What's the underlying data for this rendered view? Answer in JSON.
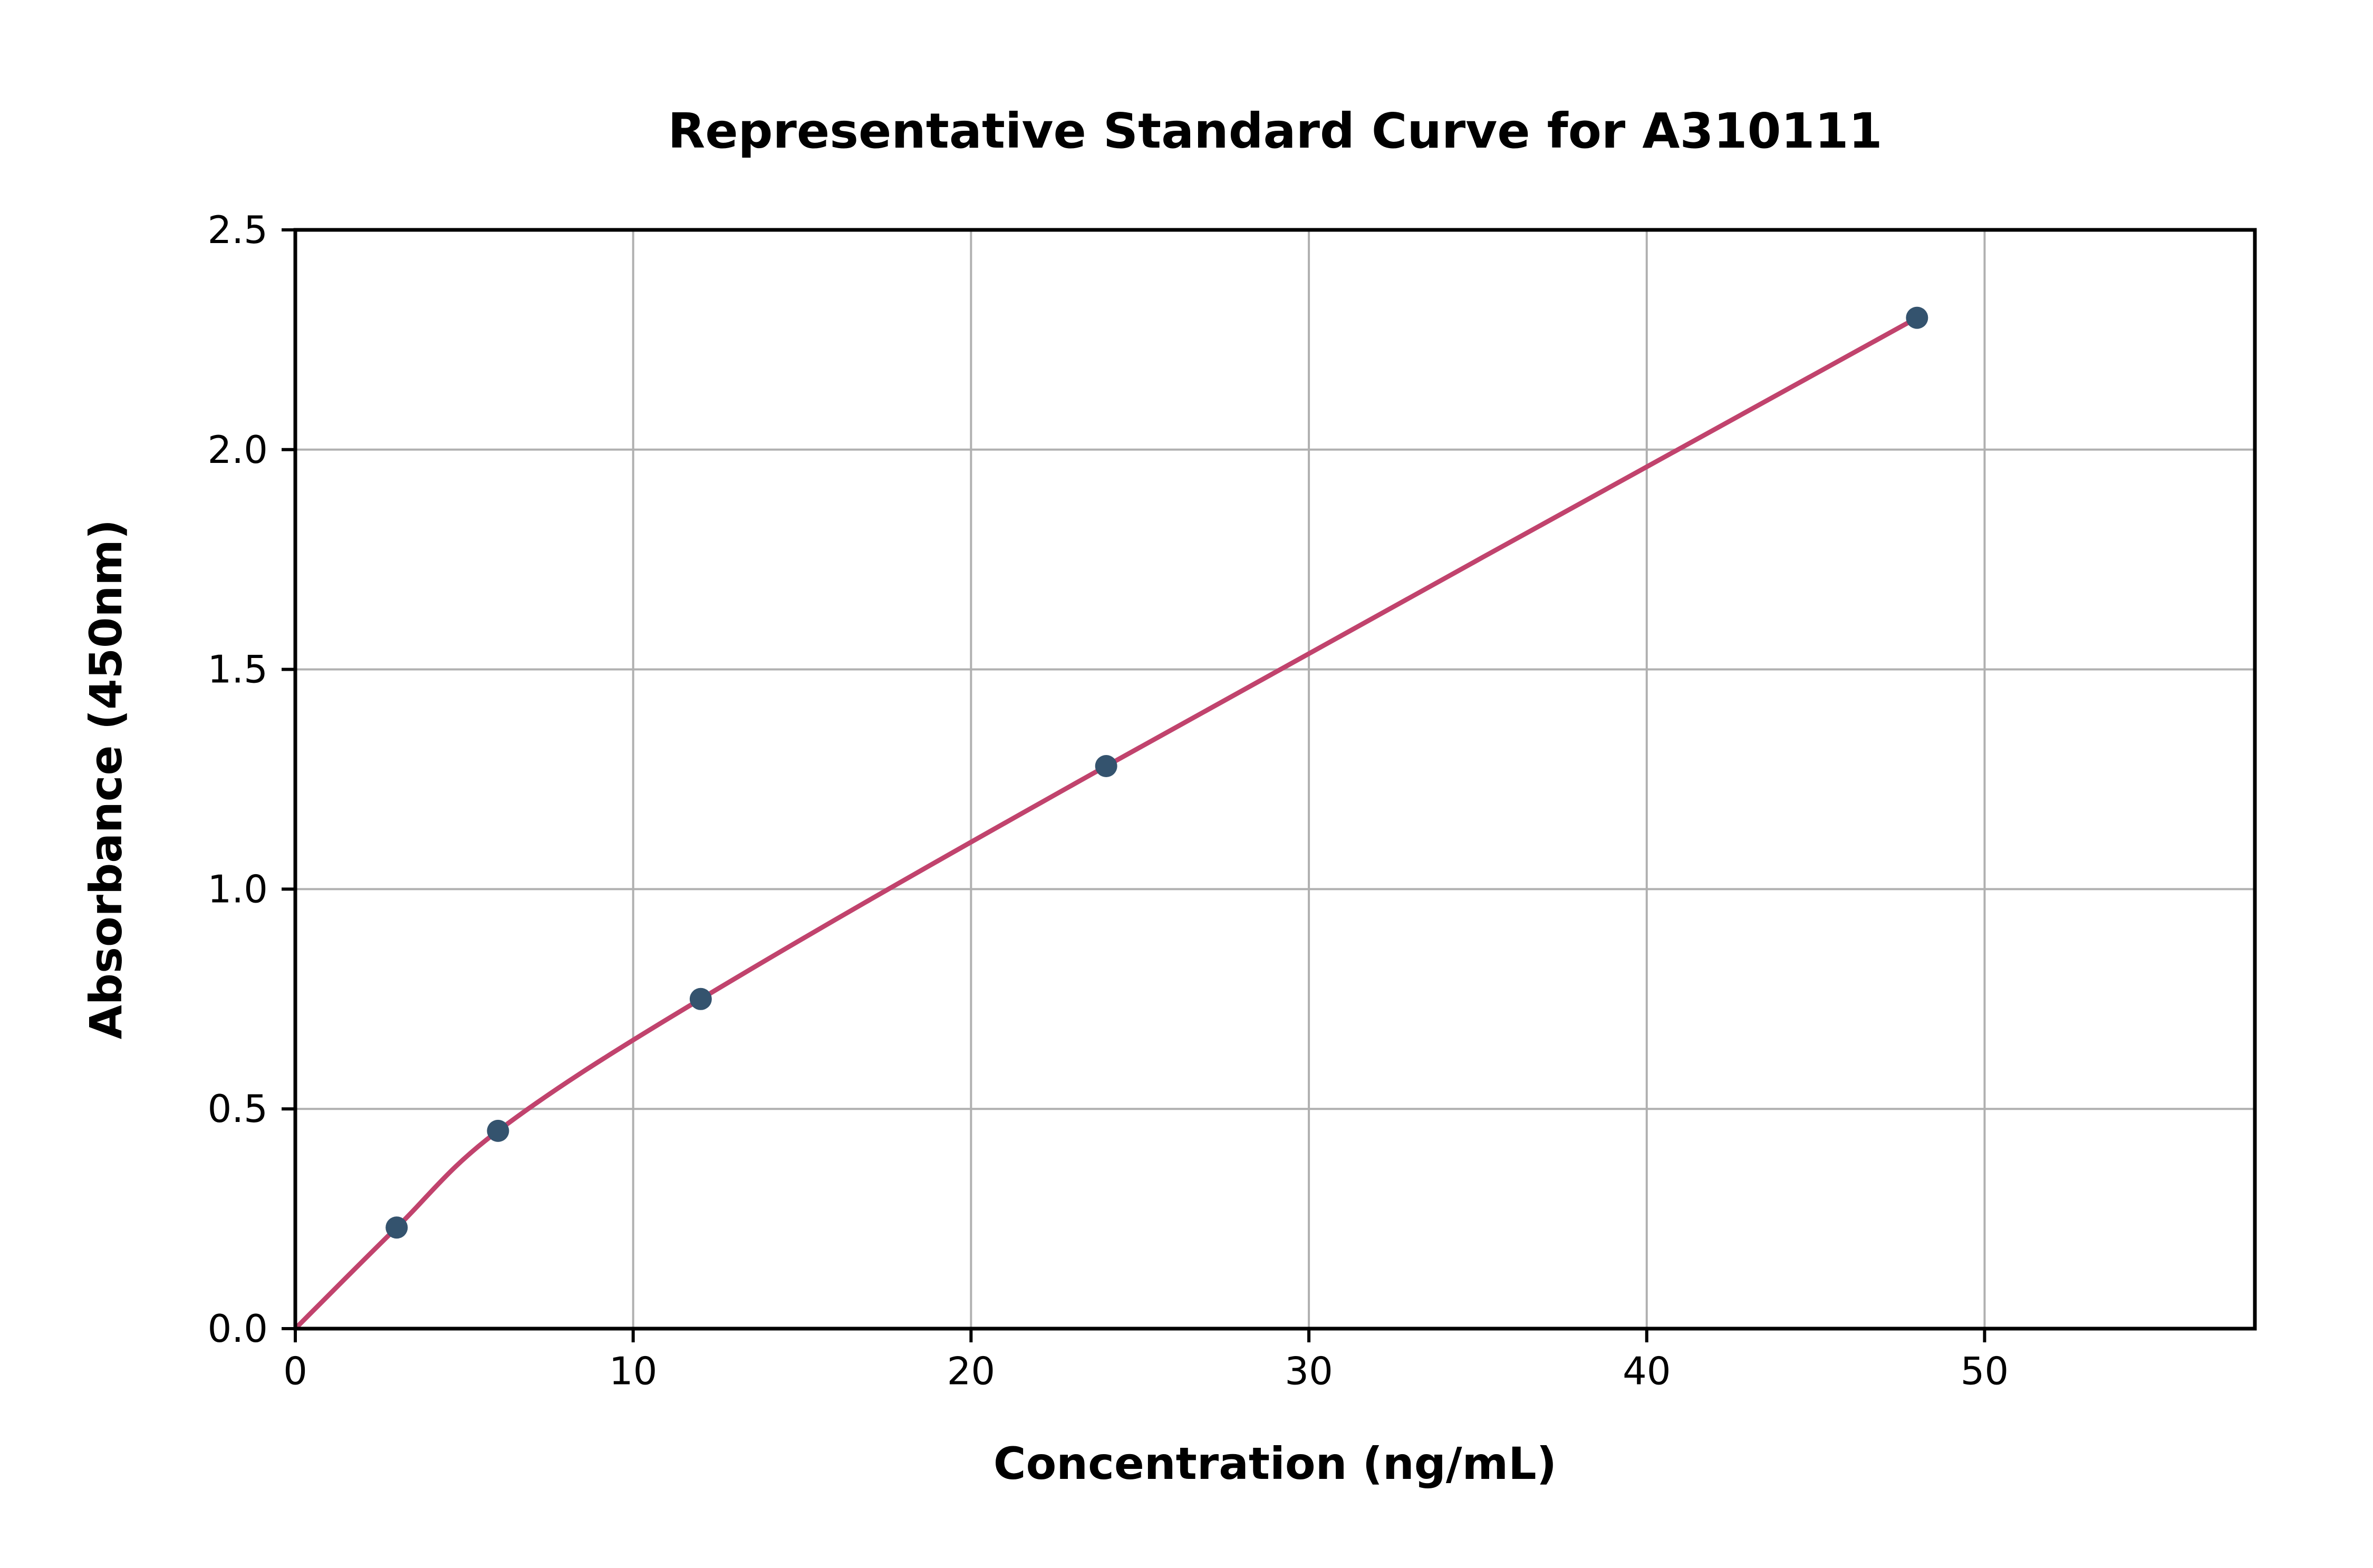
{
  "chart_data": {
    "type": "scatter",
    "title": "Representative Standard Curve for A310111",
    "xlabel": "Concentration (ng/mL)",
    "ylabel": "Absorbance (450nm)",
    "xlim": [
      0,
      58
    ],
    "ylim": [
      0,
      2.5
    ],
    "xtick_values": [
      0,
      10,
      20,
      30,
      40,
      50
    ],
    "xtick_labels": [
      "0",
      "10",
      "20",
      "30",
      "40",
      "50"
    ],
    "ytick_values": [
      0.0,
      0.5,
      1.0,
      1.5,
      2.0,
      2.5
    ],
    "ytick_labels": [
      "0.0",
      "0.5",
      "1.0",
      "1.5",
      "2.0",
      "2.5"
    ],
    "points": [
      {
        "x": 3,
        "y": 0.23
      },
      {
        "x": 6,
        "y": 0.45
      },
      {
        "x": 12,
        "y": 0.75
      },
      {
        "x": 24,
        "y": 1.28
      },
      {
        "x": 48,
        "y": 2.3
      }
    ],
    "curve_points": [
      [
        0,
        0.0
      ],
      [
        3,
        0.23
      ],
      [
        6,
        0.45
      ],
      [
        12,
        0.75
      ],
      [
        24,
        1.28
      ],
      [
        48,
        2.3
      ]
    ],
    "grid": true,
    "legend": "none",
    "colors": {
      "curve": "#c1436d",
      "marker": "#34536e",
      "grid": "#b0b0b0",
      "spine": "#000000",
      "background": "#ffffff"
    }
  }
}
